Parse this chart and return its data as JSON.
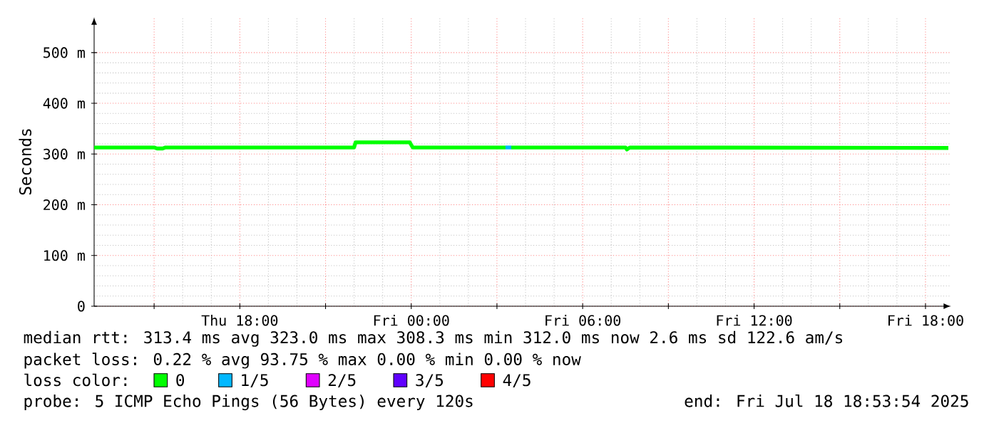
{
  "chart_data": {
    "type": "line",
    "ylabel": "Seconds",
    "legend_title": "loss color:",
    "xlim": [
      "2025-07-17T12:54",
      "2025-07-18T18:54"
    ],
    "ylim": [
      0,
      570
    ],
    "xticks": [
      {
        "value": "2025-07-17T15:00",
        "label": null
      },
      {
        "value": "2025-07-17T18:00",
        "label": "Thu 18:00"
      },
      {
        "value": "2025-07-17T21:00",
        "label": null
      },
      {
        "value": "2025-07-18T00:00",
        "label": "Fri 00:00"
      },
      {
        "value": "2025-07-18T03:00",
        "label": null
      },
      {
        "value": "2025-07-18T06:00",
        "label": "Fri 06:00"
      },
      {
        "value": "2025-07-18T09:00",
        "label": null
      },
      {
        "value": "2025-07-18T12:00",
        "label": "Fri 12:00"
      },
      {
        "value": "2025-07-18T15:00",
        "label": null
      },
      {
        "value": "2025-07-18T18:00",
        "label": "Fri 18:00"
      }
    ],
    "yticks": [
      {
        "value": 0,
        "label": "0"
      },
      {
        "value": 100,
        "label": "100 m"
      },
      {
        "value": 200,
        "label": "200 m"
      },
      {
        "value": 300,
        "label": "300 m"
      },
      {
        "value": 400,
        "label": "400 m"
      },
      {
        "value": 500,
        "label": "500 m"
      }
    ],
    "grid": true,
    "legend": "bottom",
    "series": [
      {
        "name": "0",
        "color": "#00ff00",
        "x": [
          "2025-07-17T12:54",
          "2025-07-17T15:00",
          "2025-07-17T15:06",
          "2025-07-17T15:18",
          "2025-07-17T15:24",
          "2025-07-17T22:00",
          "2025-07-17T22:03",
          "2025-07-17T23:57",
          "2025-07-18T00:03",
          "2025-07-18T03:18",
          "2025-07-18T03:24",
          "2025-07-18T03:30",
          "2025-07-18T07:30",
          "2025-07-18T07:33",
          "2025-07-18T07:39",
          "2025-07-18T18:48"
        ],
        "values": [
          313,
          313,
          311,
          311,
          313,
          313,
          323,
          323,
          313,
          313,
          null,
          313,
          313,
          309,
          313,
          312
        ]
      },
      {
        "name": "1/5",
        "color": "#00b8ff",
        "x": [
          "2025-07-18T03:18",
          "2025-07-18T03:30"
        ],
        "values": [
          313,
          313
        ]
      },
      {
        "name": "2/5",
        "color": "#e000ff"
      },
      {
        "name": "3/5",
        "color": "#6000ff"
      },
      {
        "name": "4/5",
        "color": "#ff0000"
      }
    ],
    "annotations": [
      "median rtt:  313.4 ms avg  323.0 ms max  308.3 ms min  312.0 ms now  2.6 ms sd  122.6   am/s",
      "packet loss: 0.22 % avg  93.75 % max  0.00 % min  0.00 % now",
      "probe:       5 ICMP Echo Pings (56 Bytes) every 120s",
      "end: Fri Jul 18 18:53:54 2025"
    ]
  }
}
